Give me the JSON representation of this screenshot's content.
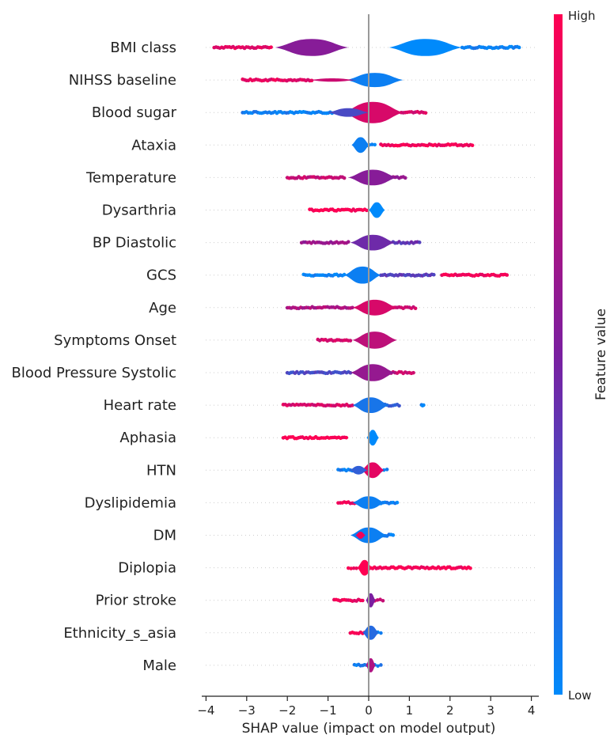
{
  "chart_data": {
    "type": "violin",
    "title": "",
    "xlabel": "SHAP value (impact on model output)",
    "ylabel": "",
    "xlim": [
      -4.15,
      4.1
    ],
    "xticks": [
      -4,
      -3,
      -2,
      -1,
      0,
      1,
      2,
      3,
      4
    ],
    "xtick_labels": [
      "−4",
      "−3",
      "−2",
      "−1",
      "0",
      "1",
      "2",
      "3",
      "4"
    ],
    "colorbar": {
      "title": "Feature value",
      "high_label": "High",
      "low_label": "Low",
      "low_color": "#008afb",
      "high_color": "#ff0052"
    },
    "features": [
      {
        "name": "BMI class",
        "range": [
          -3.8,
          3.7
        ],
        "violins": [
          {
            "center": -1.4,
            "width": 0.9,
            "height": 0.6,
            "v": 0.55
          },
          {
            "center": 1.4,
            "width": 0.9,
            "height": 0.6,
            "v": 0.0
          }
        ],
        "tails": [
          {
            "from": -3.8,
            "to": -2.4,
            "v": 0.9
          },
          {
            "from": 2.3,
            "to": 3.7,
            "v": 0.05
          }
        ]
      },
      {
        "name": "NIHSS baseline",
        "range": [
          -3.1,
          0.95
        ],
        "violins": [
          {
            "center": 0.15,
            "width": 0.7,
            "height": 0.5,
            "v": 0.05
          },
          {
            "center": -0.9,
            "width": 0.6,
            "height": 0.12,
            "v": 0.8
          }
        ],
        "tails": [
          {
            "from": -3.1,
            "to": -1.4,
            "v": 0.9
          }
        ]
      },
      {
        "name": "Blood sugar",
        "range": [
          -3.1,
          1.4
        ],
        "violins": [
          {
            "center": 0.1,
            "width": 0.75,
            "height": 0.75,
            "v": 0.85
          },
          {
            "center": -0.5,
            "width": 0.5,
            "height": 0.3,
            "v": 0.3
          }
        ],
        "tails": [
          {
            "from": -3.1,
            "to": -0.9,
            "v": 0.05
          },
          {
            "from": 0.8,
            "to": 1.4,
            "v": 0.85
          }
        ]
      },
      {
        "name": "Ataxia",
        "range": [
          -0.4,
          2.55
        ],
        "violins": [
          {
            "center": -0.2,
            "width": 0.22,
            "height": 0.55,
            "v": 0.05
          }
        ],
        "tails": [
          {
            "from": 0.3,
            "to": 2.55,
            "v": 0.95
          },
          {
            "from": -0.05,
            "to": 0.15,
            "v": 0.05
          }
        ]
      },
      {
        "name": "Temperature",
        "range": [
          -2.0,
          0.9
        ],
        "violins": [
          {
            "center": 0.1,
            "width": 0.6,
            "height": 0.55,
            "v": 0.55
          }
        ],
        "tails": [
          {
            "from": -2.0,
            "to": -0.6,
            "v": 0.8
          },
          {
            "from": 0.6,
            "to": 0.9,
            "v": 0.6
          }
        ]
      },
      {
        "name": "Dysarthria",
        "range": [
          -1.45,
          0.35
        ],
        "violins": [
          {
            "center": 0.2,
            "width": 0.2,
            "height": 0.55,
            "v": 0.0
          }
        ],
        "tails": [
          {
            "from": -1.45,
            "to": -0.05,
            "v": 1.0
          }
        ]
      },
      {
        "name": "BP Diastolic",
        "range": [
          -1.65,
          1.25
        ],
        "violins": [
          {
            "center": 0.1,
            "width": 0.55,
            "height": 0.55,
            "v": 0.45
          }
        ],
        "tails": [
          {
            "from": -1.65,
            "to": -0.5,
            "v": 0.6
          },
          {
            "from": 0.6,
            "to": 1.25,
            "v": 0.4
          }
        ]
      },
      {
        "name": "GCS",
        "range": [
          -1.6,
          3.4
        ],
        "violins": [
          {
            "center": -0.15,
            "width": 0.45,
            "height": 0.6,
            "v": 0.05
          }
        ],
        "tails": [
          {
            "from": -1.6,
            "to": -0.6,
            "v": 0.05
          },
          {
            "from": 0.3,
            "to": 1.6,
            "v": 0.35
          },
          {
            "from": 1.8,
            "to": 3.4,
            "v": 0.95
          }
        ]
      },
      {
        "name": "Age",
        "range": [
          -2.0,
          1.15
        ],
        "violins": [
          {
            "center": 0.15,
            "width": 0.55,
            "height": 0.55,
            "v": 0.85
          }
        ],
        "tails": [
          {
            "from": -2.0,
            "to": -0.4,
            "v": 0.7
          },
          {
            "from": 0.6,
            "to": 1.15,
            "v": 0.8
          }
        ]
      },
      {
        "name": "Symptoms Onset",
        "range": [
          -1.25,
          0.65
        ],
        "violins": [
          {
            "center": 0.15,
            "width": 0.55,
            "height": 0.6,
            "v": 0.75
          }
        ],
        "tails": [
          {
            "from": -1.25,
            "to": -0.45,
            "v": 0.85
          }
        ]
      },
      {
        "name": "Blood Pressure Systolic",
        "range": [
          -2.0,
          1.1
        ],
        "violins": [
          {
            "center": 0.1,
            "width": 0.55,
            "height": 0.6,
            "v": 0.6
          }
        ],
        "tails": [
          {
            "from": -2.0,
            "to": -0.45,
            "v": 0.3
          },
          {
            "from": 0.55,
            "to": 1.1,
            "v": 0.8
          }
        ]
      },
      {
        "name": "Heart rate",
        "range": [
          -2.1,
          1.35
        ],
        "violins": [
          {
            "center": 0.05,
            "width": 0.45,
            "height": 0.55,
            "v": 0.1
          }
        ],
        "tails": [
          {
            "from": -2.1,
            "to": -0.4,
            "v": 0.85
          },
          {
            "from": 0.4,
            "to": 0.75,
            "v": 0.2
          },
          {
            "from": 1.3,
            "to": 1.35,
            "v": 0.05
          }
        ]
      },
      {
        "name": "Aphasia",
        "range": [
          -2.1,
          0.2
        ],
        "violins": [
          {
            "center": 0.1,
            "width": 0.15,
            "height": 0.55,
            "v": 0.0
          }
        ],
        "tails": [
          {
            "from": -2.1,
            "to": -0.55,
            "v": 1.0
          }
        ]
      },
      {
        "name": "HTN",
        "range": [
          -0.75,
          0.45
        ],
        "violins": [
          {
            "center": 0.1,
            "width": 0.28,
            "height": 0.55,
            "v": 0.9
          },
          {
            "center": -0.25,
            "width": 0.22,
            "height": 0.3,
            "v": 0.2
          }
        ],
        "tails": [
          {
            "from": -0.75,
            "to": -0.4,
            "v": 0.05
          },
          {
            "from": 0.3,
            "to": 0.45,
            "v": 0.05
          }
        ]
      },
      {
        "name": "Dyslipidemia",
        "range": [
          -0.75,
          0.7
        ],
        "violins": [
          {
            "center": 0.0,
            "width": 0.4,
            "height": 0.45,
            "v": 0.05
          }
        ],
        "tails": [
          {
            "from": -0.75,
            "to": -0.3,
            "v": 0.95
          },
          {
            "from": 0.3,
            "to": 0.7,
            "v": 0.05
          }
        ]
      },
      {
        "name": "DM",
        "range": [
          -0.45,
          0.6
        ],
        "violins": [
          {
            "center": 0.0,
            "width": 0.45,
            "height": 0.55,
            "v": 0.05
          },
          {
            "center": -0.2,
            "width": 0.12,
            "height": 0.25,
            "v": 0.95
          }
        ],
        "tails": [
          {
            "from": 0.3,
            "to": 0.6,
            "v": 0.05
          }
        ]
      },
      {
        "name": "Diplopia",
        "range": [
          -0.5,
          2.5
        ],
        "violins": [
          {
            "center": -0.1,
            "width": 0.18,
            "height": 0.55,
            "v": 1.0
          }
        ],
        "tails": [
          {
            "from": 0.05,
            "to": 2.5,
            "v": 0.97
          },
          {
            "from": -0.5,
            "to": -0.3,
            "v": 0.95
          }
        ]
      },
      {
        "name": "Prior stroke",
        "range": [
          -0.85,
          0.35
        ],
        "violins": [
          {
            "center": 0.05,
            "width": 0.12,
            "height": 0.5,
            "v": 0.5
          }
        ],
        "tails": [
          {
            "from": -0.85,
            "to": -0.15,
            "v": 0.95
          },
          {
            "from": 0.15,
            "to": 0.35,
            "v": 0.8
          }
        ]
      },
      {
        "name": "Ethnicity_s_asia",
        "range": [
          -0.45,
          0.3
        ],
        "violins": [
          {
            "center": 0.05,
            "width": 0.2,
            "height": 0.5,
            "v": 0.15
          }
        ],
        "tails": [
          {
            "from": -0.45,
            "to": -0.1,
            "v": 0.95
          },
          {
            "from": 0.15,
            "to": 0.3,
            "v": 0.05
          }
        ]
      },
      {
        "name": "Male",
        "range": [
          -0.35,
          0.3
        ],
        "violins": [
          {
            "center": 0.05,
            "width": 0.12,
            "height": 0.5,
            "v": 0.7
          }
        ],
        "tails": [
          {
            "from": -0.35,
            "to": -0.05,
            "v": 0.05
          },
          {
            "from": 0.15,
            "to": 0.3,
            "v": 0.05
          }
        ]
      }
    ]
  }
}
